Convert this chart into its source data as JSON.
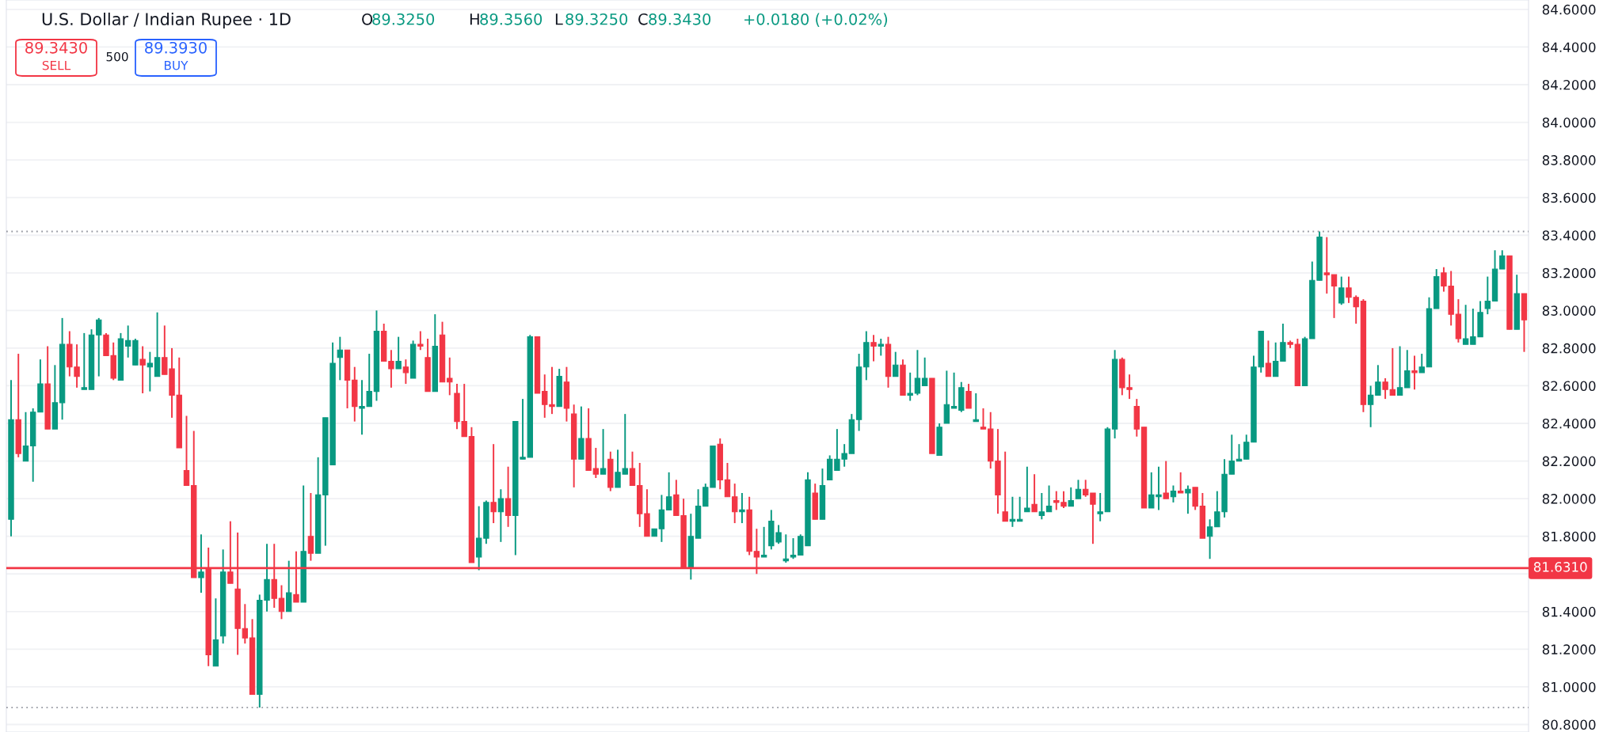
{
  "chart_data": {
    "type": "candlestick",
    "title": "U.S. Dollar / Indian Rupee · 1D",
    "annotations": [
      "O89.3250",
      "H89.3560",
      "L89.3250",
      "C89.3430",
      "+0.0180 (+0.02%)",
      "89.3430",
      "SELL",
      "500",
      "89.3930",
      "BUY"
    ],
    "categories": [
      null,
      null,
      null,
      null,
      null,
      null,
      null,
      null,
      null,
      null,
      null,
      null,
      null,
      null,
      null,
      null,
      null,
      null,
      null,
      null,
      null,
      null,
      null,
      null,
      null,
      null,
      null,
      null,
      null,
      null,
      null,
      null,
      null,
      null,
      null,
      null,
      null,
      null,
      null,
      null,
      null,
      null,
      null,
      null,
      null,
      null,
      null,
      null,
      null,
      null,
      null,
      null,
      null,
      null,
      null,
      null,
      null,
      null,
      null,
      null,
      null,
      null,
      null,
      null,
      null,
      null,
      null,
      null,
      null,
      null,
      null,
      null,
      null,
      null,
      null,
      null,
      null,
      null,
      null,
      null,
      null,
      null,
      null,
      null,
      null,
      null,
      null,
      null,
      null,
      null,
      null,
      null,
      null,
      null,
      null,
      null,
      null,
      null,
      null,
      null,
      null,
      null,
      null,
      null,
      null,
      null,
      null,
      null,
      null,
      null,
      null,
      null,
      null,
      null,
      null,
      null,
      null,
      null,
      null,
      null,
      null,
      null,
      null,
      null,
      null,
      null,
      null,
      null,
      null,
      null,
      null,
      null,
      null,
      null,
      null,
      null,
      null,
      null,
      null,
      null,
      null,
      null,
      null,
      null,
      null,
      null,
      null,
      null,
      null,
      null,
      null,
      null,
      null,
      null,
      null,
      null,
      null,
      null,
      null,
      null,
      null,
      null,
      null,
      null,
      null,
      null,
      null,
      null,
      null,
      null,
      null,
      null,
      null,
      null,
      null,
      null,
      null,
      null,
      null,
      null,
      null,
      null,
      null,
      null,
      null,
      null,
      null,
      null,
      null,
      null,
      null,
      null,
      null,
      null,
      null,
      null,
      null,
      null,
      null,
      null,
      null,
      null,
      null,
      null,
      null,
      null,
      null,
      null
    ],
    "ohlc": [
      [
        81.89,
        82.63,
        81.8,
        82.42
      ],
      [
        82.42,
        82.77,
        82.22,
        82.24
      ],
      [
        82.2,
        82.46,
        82.2,
        82.28
      ],
      [
        82.28,
        82.48,
        82.09,
        82.46
      ],
      [
        82.46,
        82.74,
        82.46,
        82.61
      ],
      [
        82.61,
        82.81,
        82.37,
        82.37
      ],
      [
        82.37,
        82.71,
        82.37,
        82.51
      ],
      [
        82.51,
        82.96,
        82.42,
        82.82
      ],
      [
        82.82,
        82.89,
        82.65,
        82.7
      ],
      [
        82.7,
        82.82,
        82.59,
        82.65
      ],
      [
        82.58,
        82.88,
        82.58,
        82.59
      ],
      [
        82.58,
        82.9,
        82.58,
        82.87
      ],
      [
        82.87,
        82.96,
        82.65,
        82.95
      ],
      [
        82.87,
        82.88,
        82.76,
        82.76
      ],
      [
        82.76,
        82.83,
        82.63,
        82.64
      ],
      [
        82.63,
        82.88,
        82.63,
        82.85
      ],
      [
        82.81,
        82.92,
        82.75,
        82.84
      ],
      [
        82.71,
        82.85,
        82.71,
        82.84
      ],
      [
        82.74,
        82.81,
        82.56,
        82.71
      ],
      [
        82.7,
        82.78,
        82.57,
        82.72
      ],
      [
        82.65,
        82.99,
        82.65,
        82.75
      ],
      [
        82.75,
        82.92,
        82.66,
        82.66
      ],
      [
        82.69,
        82.8,
        82.43,
        82.55
      ],
      [
        82.55,
        82.75,
        82.27,
        82.27
      ],
      [
        82.15,
        82.44,
        82.07,
        82.07
      ],
      [
        82.07,
        82.36,
        81.58,
        81.58
      ],
      [
        81.58,
        81.81,
        81.5,
        81.61
      ],
      [
        81.63,
        81.74,
        81.11,
        81.17
      ],
      [
        81.11,
        81.47,
        81.11,
        81.25
      ],
      [
        81.27,
        81.73,
        81.23,
        81.61
      ],
      [
        81.61,
        81.88,
        81.55,
        81.55
      ],
      [
        81.52,
        81.82,
        81.17,
        81.31
      ],
      [
        81.31,
        81.44,
        81.23,
        81.26
      ],
      [
        81.26,
        81.36,
        80.96,
        80.96
      ],
      [
        80.96,
        81.49,
        80.89,
        81.46
      ],
      [
        81.46,
        81.76,
        81.4,
        81.57
      ],
      [
        81.57,
        81.76,
        81.42,
        81.47
      ],
      [
        81.47,
        81.54,
        81.36,
        81.4
      ],
      [
        81.4,
        81.67,
        81.4,
        81.5
      ],
      [
        81.49,
        81.72,
        81.45,
        81.45
      ],
      [
        81.45,
        82.07,
        81.45,
        81.72
      ],
      [
        81.8,
        82.03,
        81.67,
        81.71
      ],
      [
        81.71,
        82.22,
        81.71,
        82.02
      ],
      [
        82.02,
        82.43,
        81.75,
        82.43
      ],
      [
        82.18,
        82.83,
        82.18,
        82.72
      ],
      [
        82.75,
        82.86,
        82.63,
        82.79
      ],
      [
        82.79,
        82.79,
        82.48,
        82.63
      ],
      [
        82.63,
        82.7,
        82.41,
        82.49
      ],
      [
        82.48,
        82.63,
        82.34,
        82.49
      ],
      [
        82.49,
        82.77,
        82.49,
        82.57
      ],
      [
        82.57,
        83.0,
        82.52,
        82.89
      ],
      [
        82.89,
        82.93,
        82.73,
        82.73
      ],
      [
        82.73,
        82.79,
        82.59,
        82.69
      ],
      [
        82.69,
        82.86,
        82.69,
        82.73
      ],
      [
        82.7,
        82.74,
        82.61,
        82.67
      ],
      [
        82.64,
        82.84,
        82.64,
        82.82
      ],
      [
        82.82,
        82.89,
        82.79,
        82.81
      ],
      [
        82.75,
        82.85,
        82.57,
        82.57
      ],
      [
        82.57,
        82.98,
        82.57,
        82.81
      ],
      [
        82.87,
        82.94,
        82.62,
        82.62
      ],
      [
        82.64,
        82.75,
        82.55,
        82.62
      ],
      [
        82.56,
        82.61,
        82.37,
        82.41
      ],
      [
        82.41,
        82.61,
        82.33,
        82.33
      ],
      [
        82.33,
        82.38,
        81.66,
        81.66
      ],
      [
        81.69,
        81.96,
        81.62,
        81.79
      ],
      [
        81.79,
        81.99,
        81.76,
        81.98
      ],
      [
        81.98,
        82.29,
        81.87,
        81.93
      ],
      [
        81.93,
        82.05,
        81.77,
        82.0
      ],
      [
        82.0,
        82.17,
        81.85,
        81.91
      ],
      [
        81.91,
        82.41,
        81.7,
        82.41
      ],
      [
        82.21,
        82.53,
        82.21,
        82.22
      ],
      [
        82.22,
        82.87,
        82.22,
        82.86
      ],
      [
        82.86,
        82.86,
        82.56,
        82.56
      ],
      [
        82.57,
        82.66,
        82.43,
        82.5
      ],
      [
        82.5,
        82.7,
        82.45,
        82.49
      ],
      [
        82.49,
        82.69,
        82.49,
        82.65
      ],
      [
        82.62,
        82.7,
        82.41,
        82.48
      ],
      [
        82.45,
        82.5,
        82.06,
        82.21
      ],
      [
        82.21,
        82.49,
        82.21,
        82.32
      ],
      [
        82.32,
        82.48,
        82.15,
        82.15
      ],
      [
        82.16,
        82.27,
        82.11,
        82.13
      ],
      [
        82.13,
        82.37,
        82.13,
        82.16
      ],
      [
        82.21,
        82.25,
        82.04,
        82.06
      ],
      [
        82.06,
        82.26,
        82.06,
        82.14
      ],
      [
        82.13,
        82.45,
        82.13,
        82.16
      ],
      [
        82.16,
        82.25,
        82.07,
        82.07
      ],
      [
        82.07,
        82.19,
        81.85,
        81.92
      ],
      [
        81.92,
        82.05,
        81.8,
        81.8
      ],
      [
        81.8,
        81.84,
        81.8,
        81.84
      ],
      [
        81.84,
        82.02,
        81.77,
        81.94
      ],
      [
        81.94,
        82.14,
        81.94,
        82.01
      ],
      [
        82.02,
        82.1,
        81.91,
        81.91
      ],
      [
        81.91,
        82.0,
        81.63,
        81.63
      ],
      [
        81.63,
        81.92,
        81.57,
        81.8
      ],
      [
        81.79,
        82.05,
        81.79,
        81.96
      ],
      [
        81.96,
        82.08,
        81.96,
        82.06
      ],
      [
        82.06,
        82.28,
        82.06,
        82.28
      ],
      [
        82.29,
        82.32,
        82.05,
        82.1
      ],
      [
        82.1,
        82.19,
        82.01,
        82.01
      ],
      [
        82.01,
        82.08,
        81.87,
        81.93
      ],
      [
        81.93,
        82.03,
        81.87,
        81.94
      ],
      [
        81.94,
        82.01,
        81.7,
        81.72
      ],
      [
        81.72,
        81.84,
        81.6,
        81.69
      ],
      [
        81.69,
        81.85,
        81.69,
        81.7
      ],
      [
        81.75,
        81.94,
        81.73,
        81.88
      ],
      [
        81.77,
        81.86,
        81.76,
        81.82
      ],
      [
        81.67,
        81.81,
        81.66,
        81.68
      ],
      [
        81.69,
        81.79,
        81.68,
        81.7
      ],
      [
        81.7,
        81.81,
        81.7,
        81.8
      ],
      [
        81.75,
        82.14,
        81.75,
        82.1
      ],
      [
        82.03,
        82.08,
        81.89,
        81.89
      ],
      [
        81.89,
        82.16,
        81.89,
        82.07
      ],
      [
        82.1,
        82.23,
        82.1,
        82.21
      ],
      [
        82.15,
        82.37,
        82.15,
        82.21
      ],
      [
        82.21,
        82.29,
        82.17,
        82.24
      ],
      [
        82.24,
        82.45,
        82.24,
        82.42
      ],
      [
        82.42,
        82.77,
        82.36,
        82.7
      ],
      [
        82.7,
        82.89,
        82.63,
        82.83
      ],
      [
        82.83,
        82.87,
        82.73,
        82.81
      ],
      [
        82.81,
        82.85,
        82.76,
        82.82
      ],
      [
        82.82,
        82.86,
        82.59,
        82.65
      ],
      [
        82.65,
        82.78,
        82.65,
        82.71
      ],
      [
        82.71,
        82.74,
        82.55,
        82.55
      ],
      [
        82.55,
        82.67,
        82.52,
        82.56
      ],
      [
        82.56,
        82.79,
        82.55,
        82.64
      ],
      [
        82.6,
        82.75,
        82.6,
        82.64
      ],
      [
        82.64,
        82.64,
        82.24,
        82.24
      ],
      [
        82.23,
        82.4,
        82.23,
        82.38
      ],
      [
        82.4,
        82.68,
        82.4,
        82.5
      ],
      [
        82.48,
        82.67,
        82.48,
        82.49
      ],
      [
        82.47,
        82.62,
        82.46,
        82.59
      ],
      [
        82.57,
        82.61,
        82.48,
        82.48
      ],
      [
        82.41,
        82.56,
        82.41,
        82.42
      ],
      [
        82.38,
        82.48,
        82.37,
        82.37
      ],
      [
        82.37,
        82.46,
        82.16,
        82.2
      ],
      [
        82.2,
        82.37,
        81.92,
        82.02
      ],
      [
        81.93,
        82.25,
        81.88,
        81.88
      ],
      [
        81.88,
        82.01,
        81.85,
        81.89
      ],
      [
        81.88,
        82.01,
        81.88,
        81.89
      ],
      [
        81.93,
        82.17,
        81.93,
        81.95
      ],
      [
        81.97,
        82.13,
        81.93,
        81.93
      ],
      [
        81.91,
        82.03,
        81.89,
        81.93
      ],
      [
        81.93,
        82.07,
        81.93,
        81.96
      ],
      [
        81.99,
        82.04,
        81.94,
        81.98
      ],
      [
        81.98,
        82.04,
        81.95,
        81.96
      ],
      [
        81.96,
        82.06,
        81.96,
        81.99
      ],
      [
        82.0,
        82.1,
        82.0,
        82.05
      ],
      [
        82.05,
        82.1,
        82.01,
        82.02
      ],
      [
        82.03,
        82.03,
        81.76,
        81.97
      ],
      [
        81.92,
        82.03,
        81.88,
        81.93
      ],
      [
        81.93,
        82.38,
        81.93,
        82.37
      ],
      [
        82.37,
        82.79,
        82.32,
        82.74
      ],
      [
        82.74,
        82.75,
        82.55,
        82.59
      ],
      [
        82.59,
        82.66,
        82.53,
        82.58
      ],
      [
        82.49,
        82.53,
        82.33,
        82.37
      ],
      [
        82.38,
        82.38,
        81.95,
        81.95
      ],
      [
        81.95,
        82.14,
        81.95,
        82.02
      ],
      [
        82.01,
        82.17,
        81.94,
        82.02
      ],
      [
        82.03,
        82.2,
        82.0,
        82.0
      ],
      [
        82.01,
        82.07,
        81.98,
        82.04
      ],
      [
        82.04,
        82.14,
        82.03,
        82.03
      ],
      [
        82.03,
        82.07,
        81.92,
        82.05
      ],
      [
        82.06,
        82.06,
        81.94,
        81.96
      ],
      [
        81.96,
        82.03,
        81.79,
        81.79
      ],
      [
        81.8,
        81.89,
        81.68,
        81.85
      ],
      [
        81.85,
        82.04,
        81.85,
        81.93
      ],
      [
        81.93,
        82.21,
        81.9,
        82.13
      ],
      [
        82.13,
        82.34,
        82.13,
        82.2
      ],
      [
        82.2,
        82.29,
        82.2,
        82.21
      ],
      [
        82.21,
        82.34,
        82.21,
        82.3
      ],
      [
        82.3,
        82.76,
        82.3,
        82.7
      ],
      [
        82.7,
        82.89,
        82.67,
        82.89
      ],
      [
        82.72,
        82.84,
        82.65,
        82.65
      ],
      [
        82.65,
        82.83,
        82.65,
        82.73
      ],
      [
        82.73,
        82.93,
        82.73,
        82.83
      ],
      [
        82.83,
        82.84,
        82.8,
        82.82
      ],
      [
        82.82,
        82.85,
        82.6,
        82.6
      ],
      [
        82.6,
        82.86,
        82.6,
        82.85
      ],
      [
        82.85,
        83.26,
        82.85,
        83.16
      ],
      [
        83.16,
        83.42,
        83.16,
        83.39
      ],
      [
        83.2,
        83.39,
        83.09,
        83.19
      ],
      [
        83.19,
        83.19,
        82.96,
        83.13
      ],
      [
        83.04,
        83.18,
        83.03,
        83.12
      ],
      [
        83.12,
        83.18,
        83.04,
        83.07
      ],
      [
        83.07,
        83.08,
        82.93,
        83.02
      ],
      [
        83.05,
        83.06,
        82.46,
        82.5
      ],
      [
        82.5,
        82.6,
        82.38,
        82.55
      ],
      [
        82.55,
        82.71,
        82.55,
        82.62
      ],
      [
        82.62,
        82.64,
        82.53,
        82.58
      ],
      [
        82.58,
        82.8,
        82.55,
        82.55
      ],
      [
        82.55,
        82.81,
        82.55,
        82.59
      ],
      [
        82.59,
        82.79,
        82.59,
        82.68
      ],
      [
        82.68,
        82.76,
        82.58,
        82.67
      ],
      [
        82.67,
        82.77,
        82.67,
        82.7
      ],
      [
        82.7,
        83.07,
        82.7,
        83.01
      ],
      [
        83.01,
        83.22,
        83.01,
        83.18
      ],
      [
        83.2,
        83.23,
        83.1,
        83.13
      ],
      [
        83.13,
        83.21,
        82.92,
        82.98
      ],
      [
        82.98,
        83.06,
        82.83,
        82.85
      ],
      [
        82.82,
        83.03,
        82.82,
        82.85
      ],
      [
        82.82,
        83.01,
        82.82,
        82.86
      ],
      [
        82.86,
        83.05,
        82.86,
        82.99
      ],
      [
        83.01,
        83.18,
        82.98,
        83.05
      ],
      [
        83.05,
        83.32,
        83.05,
        83.22
      ],
      [
        83.22,
        83.32,
        83.22,
        83.29
      ],
      [
        83.29,
        83.29,
        82.9,
        82.9
      ],
      [
        82.9,
        83.19,
        82.9,
        83.09
      ],
      [
        83.09,
        83.09,
        82.78,
        82.95
      ]
    ],
    "colors": [
      "#089981",
      "#f23645",
      "#089981",
      "#089981",
      "#089981",
      "#f23645",
      "#089981",
      "#089981",
      "#f23645",
      "#f23645",
      "#089981",
      "#089981",
      "#089981",
      "#f23645",
      "#f23645",
      "#089981",
      "#089981",
      "#089981",
      "#f23645",
      "#089981",
      "#089981",
      "#f23645",
      "#f23645",
      "#f23645",
      "#f23645",
      "#f23645",
      "#089981",
      "#f23645",
      "#089981",
      "#089981",
      "#f23645",
      "#f23645",
      "#f23645",
      "#f23645",
      "#089981",
      "#089981",
      "#f23645",
      "#f23645",
      "#089981",
      "#f23645",
      "#089981",
      "#f23645",
      "#089981",
      "#089981",
      "#089981",
      "#089981",
      "#f23645",
      "#f23645",
      "#089981",
      "#089981",
      "#089981",
      "#f23645",
      "#f23645",
      "#089981",
      "#f23645",
      "#089981",
      "#f23645",
      "#f23645",
      "#089981",
      "#f23645",
      "#f23645",
      "#f23645",
      "#f23645",
      "#f23645",
      "#089981",
      "#089981",
      "#f23645",
      "#089981",
      "#f23645",
      "#089981",
      "#089981",
      "#089981",
      "#f23645",
      "#f23645",
      "#f23645",
      "#089981",
      "#f23645",
      "#f23645",
      "#089981",
      "#f23645",
      "#f23645",
      "#089981",
      "#f23645",
      "#089981",
      "#089981",
      "#f23645",
      "#f23645",
      "#f23645",
      "#089981",
      "#089981",
      "#089981",
      "#f23645",
      "#f23645",
      "#089981",
      "#089981",
      "#089981",
      "#089981",
      "#f23645",
      "#f23645",
      "#f23645",
      "#089981",
      "#f23645",
      "#f23645",
      "#089981",
      "#089981",
      "#089981",
      "#089981",
      "#089981",
      "#089981",
      "#089981",
      "#f23645",
      "#089981",
      "#089981",
      "#089981",
      "#089981",
      "#089981",
      "#089981",
      "#089981",
      "#f23645",
      "#089981",
      "#f23645",
      "#089981",
      "#f23645",
      "#089981",
      "#089981",
      "#089981",
      "#f23645",
      "#089981",
      "#089981",
      "#089981",
      "#089981",
      "#f23645",
      "#089981",
      "#f23645",
      "#f23645",
      "#f23645",
      "#f23645",
      "#089981",
      "#089981",
      "#089981",
      "#f23645",
      "#089981",
      "#089981",
      "#f23645",
      "#f23645",
      "#089981",
      "#089981",
      "#f23645",
      "#f23645",
      "#089981",
      "#089981",
      "#089981",
      "#f23645",
      "#f23645",
      "#f23645",
      "#f23645",
      "#089981",
      "#089981",
      "#f23645",
      "#089981",
      "#f23645",
      "#089981",
      "#f23645",
      "#f23645",
      "#089981",
      "#089981",
      "#089981",
      "#089981",
      "#089981",
      "#089981",
      "#089981",
      "#089981",
      "#f23645",
      "#089981",
      "#089981",
      "#f23645",
      "#f23645",
      "#089981",
      "#089981",
      "#089981",
      "#f23645",
      "#f23645",
      "#089981",
      "#f23645",
      "#f23645",
      "#f23645",
      "#089981",
      "#089981",
      "#f23645",
      "#f23645",
      "#089981",
      "#089981",
      "#f23645",
      "#089981",
      "#089981",
      "#089981",
      "#f23645",
      "#f23645",
      "#f23645",
      "#089981",
      "#089981",
      "#089981",
      "#089981",
      "#089981",
      "#089981",
      "#f23645",
      "#089981",
      "#f23645"
    ],
    "ylim": [
      80.76,
      84.65
    ],
    "yticks": [
      {
        "value": 80.8,
        "label": "80.8000"
      },
      {
        "value": 81.0,
        "label": "81.0000"
      },
      {
        "value": 81.2,
        "label": "81.2000"
      },
      {
        "value": 81.4,
        "label": "81.4000"
      },
      {
        "value": 81.6,
        "label": null
      },
      {
        "value": 81.8,
        "label": "81.8000"
      },
      {
        "value": 82.0,
        "label": "82.0000"
      },
      {
        "value": 82.2,
        "label": "82.2000"
      },
      {
        "value": 82.4,
        "label": "82.4000"
      },
      {
        "value": 82.6,
        "label": "82.6000"
      },
      {
        "value": 82.8,
        "label": "82.8000"
      },
      {
        "value": 83.0,
        "label": "83.0000"
      },
      {
        "value": 83.2,
        "label": "83.2000"
      },
      {
        "value": 83.4,
        "label": "83.4000"
      },
      {
        "value": 83.6,
        "label": "83.6000"
      },
      {
        "value": 83.8,
        "label": "83.8000"
      },
      {
        "value": 84.0,
        "label": "84.0000"
      },
      {
        "value": 84.2,
        "label": "84.2000"
      },
      {
        "value": 84.4,
        "label": "84.4000"
      },
      {
        "value": 84.6,
        "label": "84.6000"
      }
    ],
    "ref_lines": [
      {
        "axis": "y",
        "value": 81.631,
        "label": "81.6310",
        "color": "#f23645",
        "line_style": "solid"
      },
      {
        "axis": "y",
        "value": 83.42,
        "color": "#9598a1",
        "line_style": "dotted"
      },
      {
        "axis": "y",
        "value": 80.89,
        "color": "#9598a1",
        "line_style": "dotted"
      }
    ],
    "grid": "y",
    "tick_labels": "y"
  }
}
